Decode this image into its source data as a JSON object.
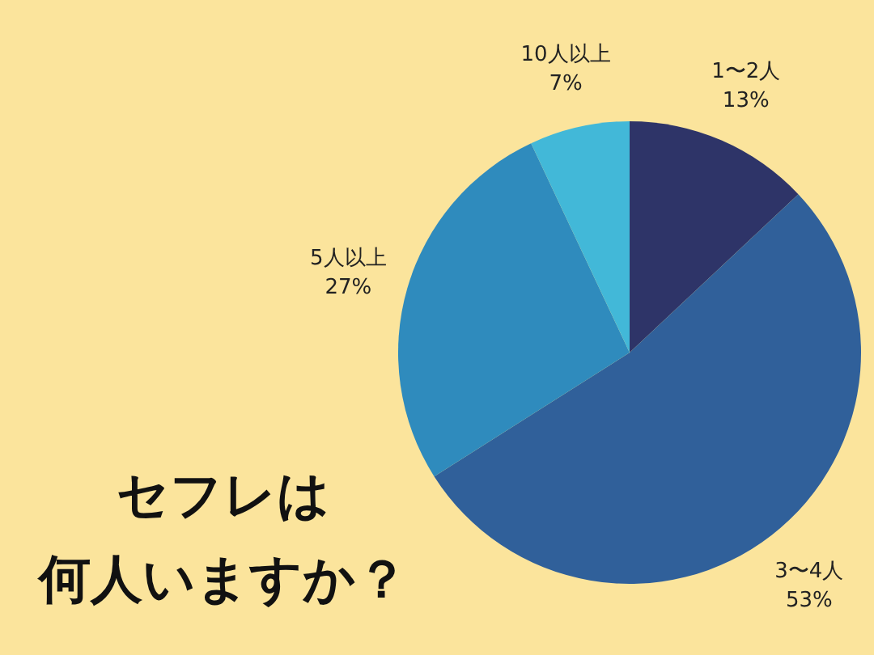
{
  "chart_data": {
    "type": "pie",
    "title": "セフレは",
    "subtitle": "何人いますか？",
    "categories": [
      "1〜2人",
      "3〜4人",
      "5人以上",
      "10人以上"
    ],
    "values": [
      13,
      53,
      27,
      7
    ],
    "colors": [
      "#2e3468",
      "#30609a",
      "#2f8bbd",
      "#42b8d8"
    ],
    "value_labels": [
      "13%",
      "53%",
      "27%",
      "7%"
    ]
  }
}
